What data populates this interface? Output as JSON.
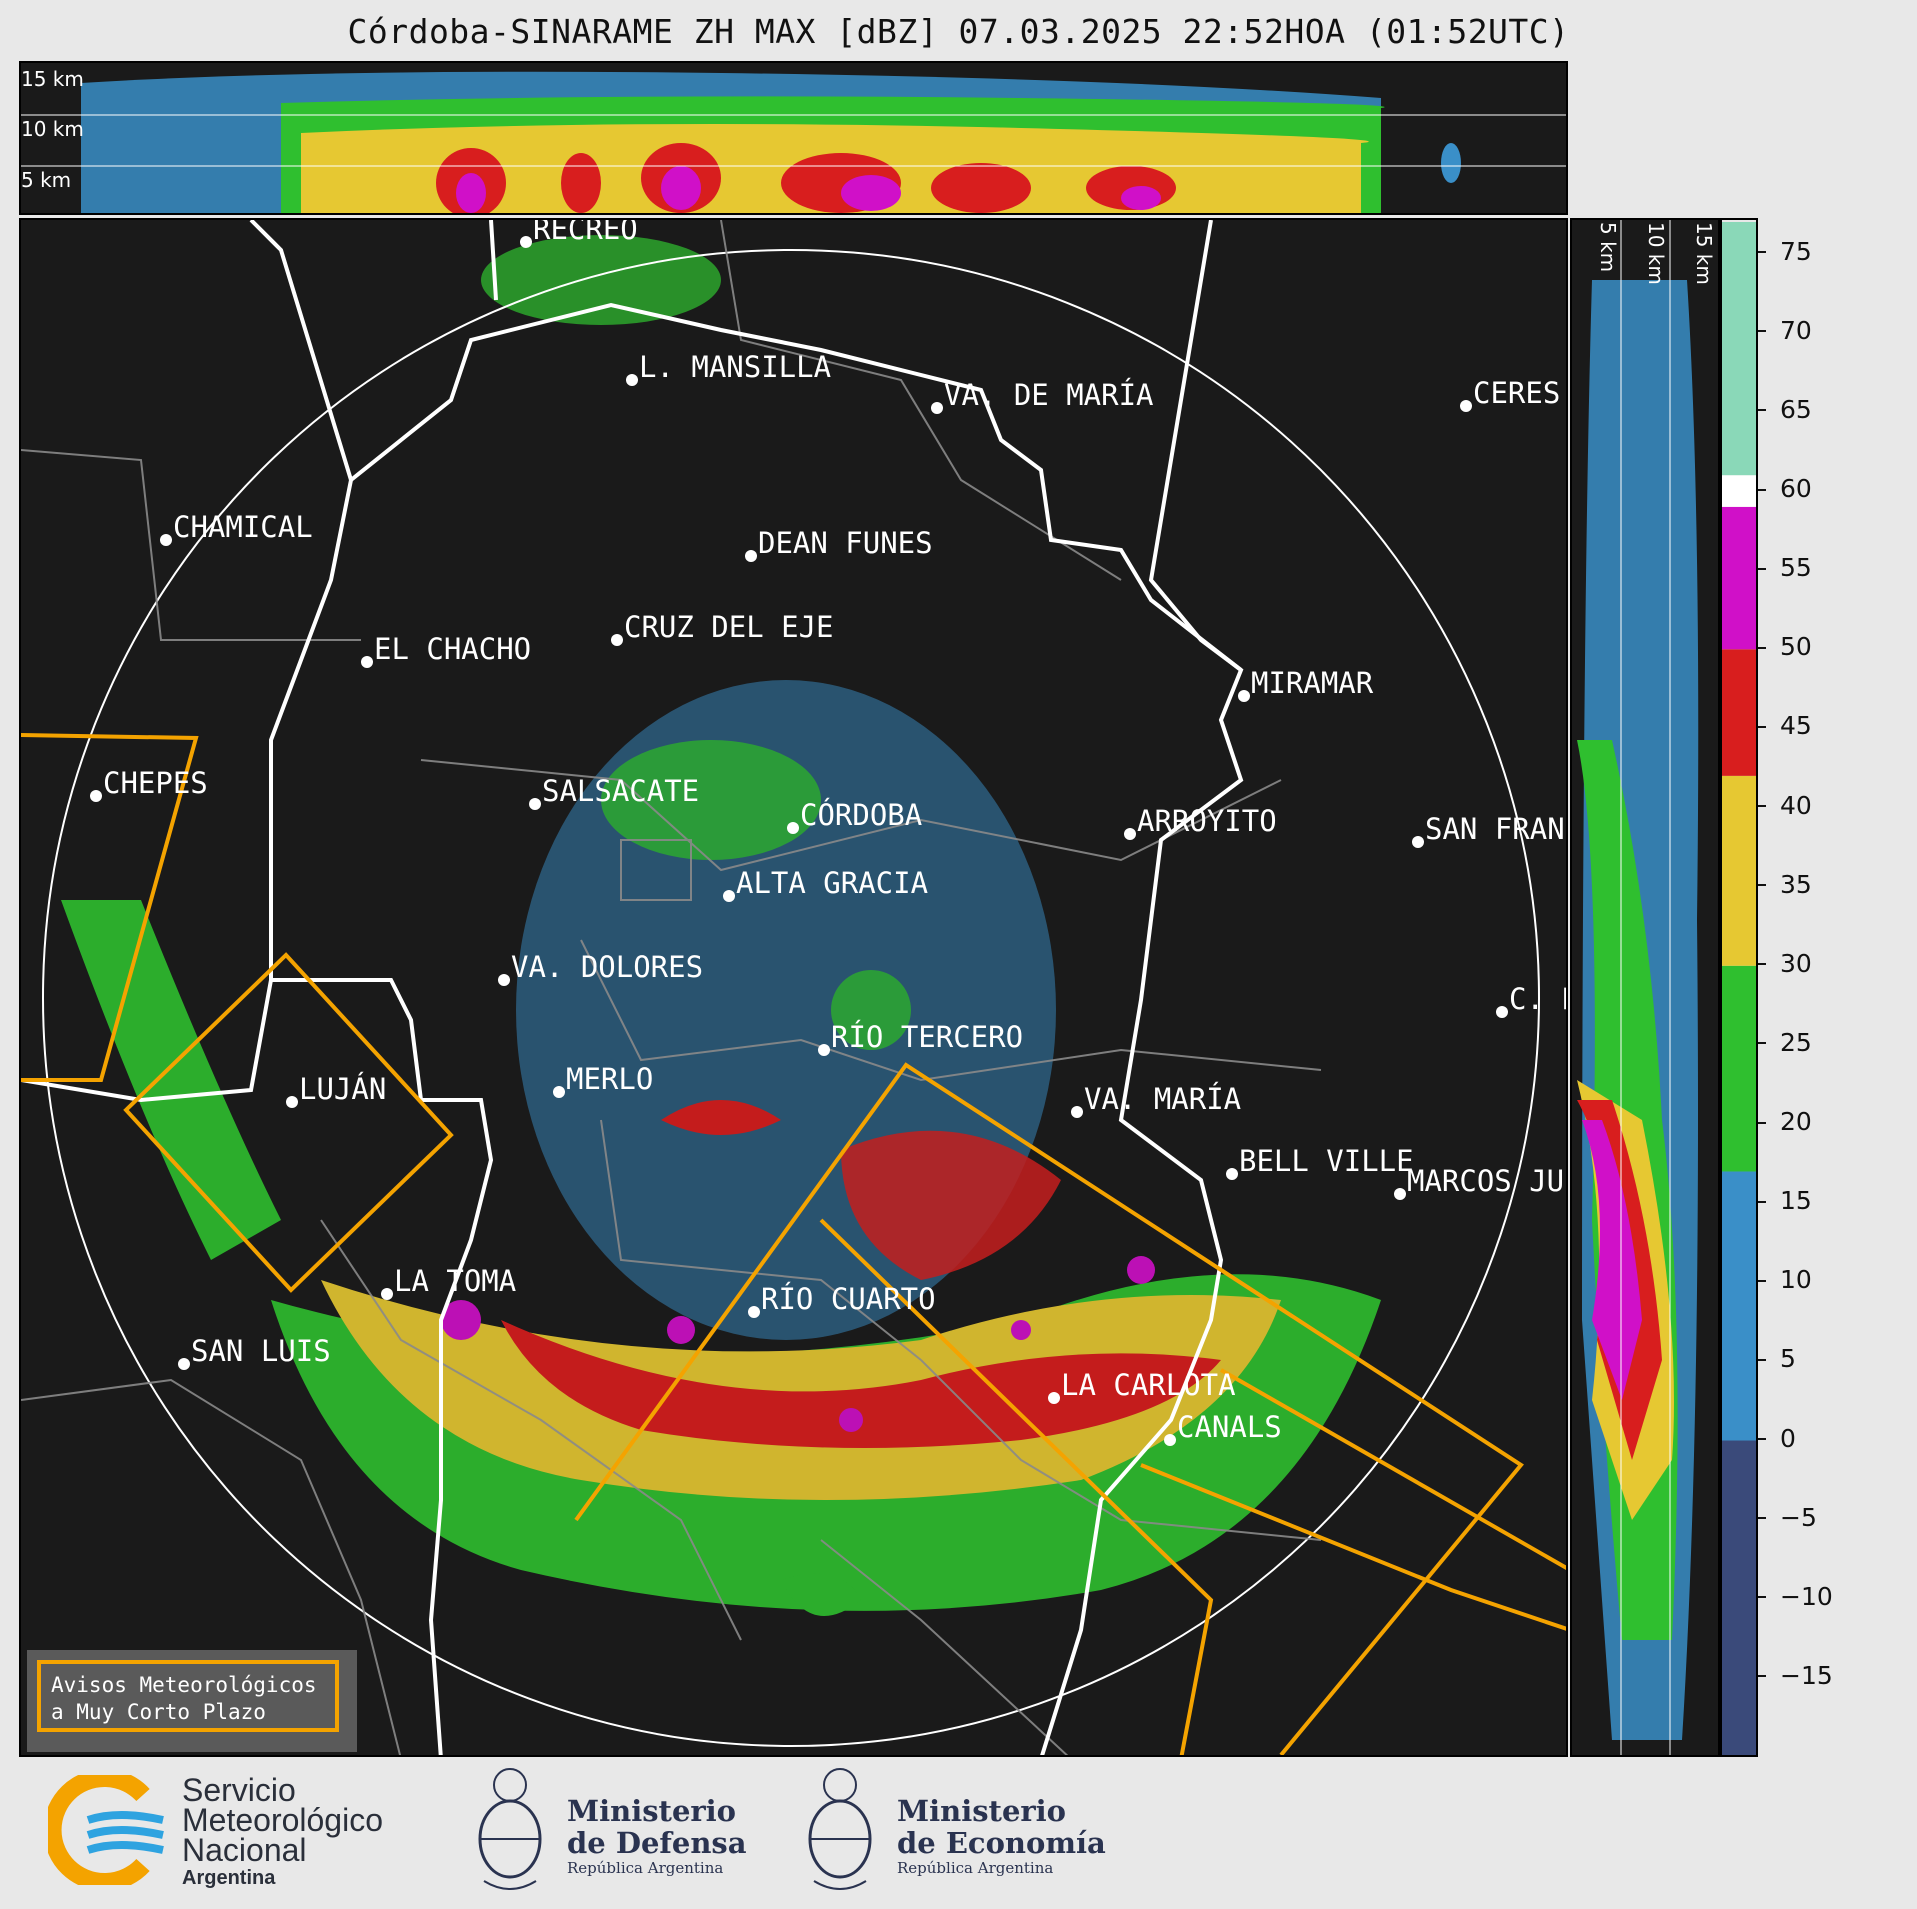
{
  "title": "Córdoba-SINARAME ZH MAX [dBZ] 07.03.2025 22:52HOA (01:52UTC)",
  "top_section": {
    "height_labels": [
      "15 km",
      "10 km",
      "5 km"
    ]
  },
  "right_section": {
    "height_labels": [
      "5 km",
      "10 km",
      "15 km"
    ]
  },
  "colorbar": {
    "unit": "dBZ",
    "range": [
      -20,
      77
    ],
    "ticks": [
      "75",
      "70",
      "65",
      "60",
      "55",
      "50",
      "45",
      "40",
      "35",
      "30",
      "25",
      "20",
      "15",
      "10",
      "5",
      "0",
      "−5",
      "−10",
      "−15"
    ],
    "tick_values": [
      75,
      70,
      65,
      60,
      55,
      50,
      45,
      40,
      35,
      30,
      25,
      20,
      15,
      10,
      5,
      0,
      -5,
      -10,
      -15
    ],
    "bands": [
      {
        "from": -20,
        "to": 0,
        "color": "#3a4a7a"
      },
      {
        "from": 0,
        "to": 17,
        "color": "#3a8fc8"
      },
      {
        "from": 17,
        "to": 30,
        "color": "#2fbf2f"
      },
      {
        "from": 30,
        "to": 42,
        "color": "#e6c832"
      },
      {
        "from": 42,
        "to": 50,
        "color": "#d81e1e"
      },
      {
        "from": 50,
        "to": 59,
        "color": "#d010c8"
      },
      {
        "from": 59,
        "to": 61,
        "color": "#ffffff"
      },
      {
        "from": 61,
        "to": 77,
        "color": "#8ad8b8"
      }
    ]
  },
  "cities": [
    {
      "name": "RECREO"
    },
    {
      "name": "L. MANSILLA"
    },
    {
      "name": "VA. DE MARÍA"
    },
    {
      "name": "CERES"
    },
    {
      "name": "CHAMICAL"
    },
    {
      "name": "DEAN FUNES"
    },
    {
      "name": "CRUZ DEL EJE"
    },
    {
      "name": "EL CHACHO"
    },
    {
      "name": "MIRAMAR"
    },
    {
      "name": "CHEPES"
    },
    {
      "name": "SALSACATE"
    },
    {
      "name": "CÓRDOBA"
    },
    {
      "name": "ARROYITO"
    },
    {
      "name": "SAN FRAN"
    },
    {
      "name": "ALTA GRACIA"
    },
    {
      "name": "VA. DOLORES"
    },
    {
      "name": "C. P"
    },
    {
      "name": "RÍO TERCERO"
    },
    {
      "name": "LUJÁN"
    },
    {
      "name": "MERLO"
    },
    {
      "name": "VA. MARÍA"
    },
    {
      "name": "BELL VILLE"
    },
    {
      "name": "MARCOS JU"
    },
    {
      "name": "LA TOMA"
    },
    {
      "name": "RÍO CUARTO"
    },
    {
      "name": "SAN LUIS"
    },
    {
      "name": "LA CARLOTA"
    },
    {
      "name": "CANALS"
    }
  ],
  "legend": {
    "line1": "Avisos Meteorológicos",
    "line2": "a Muy Corto Plazo",
    "color": "#f4a300"
  },
  "logos": {
    "smn": {
      "line1": "Servicio",
      "line2": "Meteorológico",
      "line3": "Nacional",
      "line4": "Argentina"
    },
    "defensa": {
      "line1": "Ministerio",
      "line2": "de Defensa",
      "line3": "República Argentina"
    },
    "economia": {
      "line1": "Ministerio",
      "line2": "de Economía",
      "line3": "República Argentina"
    }
  }
}
